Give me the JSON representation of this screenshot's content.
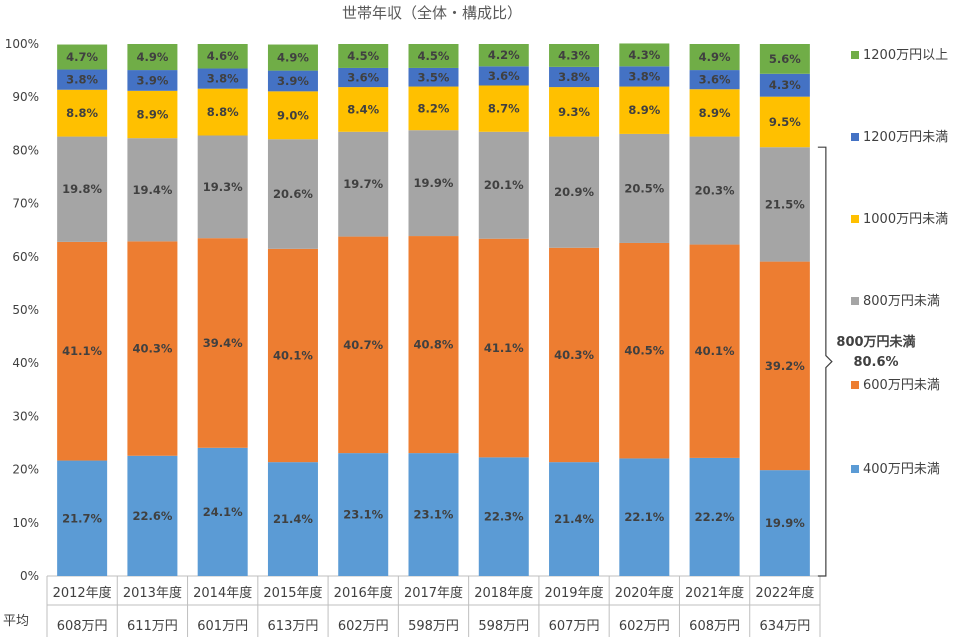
{
  "chart_data": {
    "type": "bar",
    "stacked": true,
    "title": "世帯年収（全体・構成比）",
    "xlabel": "",
    "ylabel": "",
    "ylim": [
      0,
      100
    ],
    "yticks": [
      "0%",
      "10%",
      "20%",
      "30%",
      "40%",
      "50%",
      "60%",
      "70%",
      "80%",
      "90%",
      "100%"
    ],
    "grid": false,
    "legend_position": "right",
    "categories": [
      "2012年度",
      "2013年度",
      "2014年度",
      "2015年度",
      "2016年度",
      "2017年度",
      "2018年度",
      "2019年度",
      "2020年度",
      "2021年度",
      "2022年度"
    ],
    "average_label": "平均",
    "averages": [
      "608万円",
      "611万円",
      "601万円",
      "613万円",
      "602万円",
      "598万円",
      "598万円",
      "607万円",
      "602万円",
      "608万円",
      "634万円"
    ],
    "series": [
      {
        "name": "400万円未満",
        "color": "#5B9BD5",
        "values": [
          21.7,
          22.6,
          24.1,
          21.4,
          23.1,
          23.1,
          22.3,
          21.4,
          22.1,
          22.2,
          19.9
        ],
        "labels": [
          "21.7%",
          "22.6%",
          "24.1%",
          "21.4%",
          "23.1%",
          "23.1%",
          "22.3%",
          "21.4%",
          "22.1%",
          "22.2%",
          "19.9%"
        ]
      },
      {
        "name": "600万円未満",
        "color": "#ED7D31",
        "values": [
          41.1,
          40.3,
          39.4,
          40.1,
          40.7,
          40.8,
          41.1,
          40.3,
          40.5,
          40.1,
          39.2
        ],
        "labels": [
          "41.1%",
          "40.3%",
          "39.4%",
          "40.1%",
          "40.7%",
          "40.8%",
          "41.1%",
          "40.3%",
          "40.5%",
          "40.1%",
          "39.2%"
        ]
      },
      {
        "name": "800万円未満",
        "color": "#A5A5A5",
        "values": [
          19.8,
          19.4,
          19.3,
          20.6,
          19.7,
          19.9,
          20.1,
          20.9,
          20.5,
          20.3,
          21.5
        ],
        "labels": [
          "19.8%",
          "19.4%",
          "19.3%",
          "20.6%",
          "19.7%",
          "19.9%",
          "20.1%",
          "20.9%",
          "20.5%",
          "20.3%",
          "21.5%"
        ]
      },
      {
        "name": "1000万円未満",
        "color": "#FFC000",
        "values": [
          8.8,
          8.9,
          8.8,
          9.0,
          8.4,
          8.2,
          8.7,
          9.3,
          8.9,
          8.9,
          9.5
        ],
        "labels": [
          "8.8%",
          "8.9%",
          "8.8%",
          "9.0%",
          "8.4%",
          "8.2%",
          "8.7%",
          "9.3%",
          "8.9%",
          "8.9%",
          "9.5%"
        ]
      },
      {
        "name": "1200万円未満",
        "color": "#4472C4",
        "values": [
          3.8,
          3.9,
          3.8,
          3.9,
          3.6,
          3.5,
          3.6,
          3.8,
          3.8,
          3.6,
          4.3
        ],
        "labels": [
          "3.8%",
          "3.9%",
          "3.8%",
          "3.9%",
          "3.6%",
          "3.5%",
          "3.6%",
          "3.8%",
          "3.8%",
          "3.6%",
          "4.3%"
        ]
      },
      {
        "name": "1200万円以上",
        "color": "#70AD47",
        "values": [
          4.7,
          4.9,
          4.6,
          4.9,
          4.5,
          4.5,
          4.2,
          4.3,
          4.3,
          4.9,
          5.6
        ],
        "labels": [
          "4.7%",
          "4.9%",
          "4.6%",
          "4.9%",
          "4.5%",
          "4.5%",
          "4.2%",
          "4.3%",
          "4.3%",
          "4.9%",
          "5.6%"
        ]
      }
    ],
    "annotation": {
      "category": "2022年度",
      "range": [
        0,
        80.6
      ],
      "line1": "800万円未満",
      "line2": "80.6%"
    }
  }
}
